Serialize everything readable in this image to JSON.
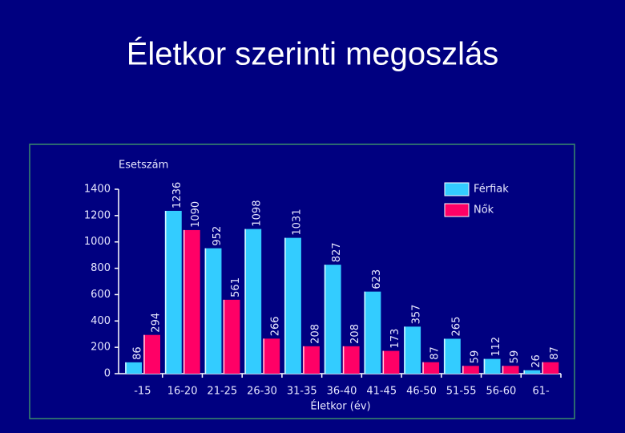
{
  "chart_data": {
    "type": "bar",
    "title": "Életkor szerinti megoszlás",
    "y_label": "Esetszám",
    "x_label": "Életkor (év)",
    "categories": [
      "-15",
      "16-20",
      "21-25",
      "26-30",
      "31-35",
      "36-40",
      "41-45",
      "46-50",
      "51-55",
      "56-60",
      "61-"
    ],
    "series": [
      {
        "name": "Férfiak",
        "color": "#33ccff",
        "values": [
          86,
          1236,
          952,
          1098,
          1031,
          827,
          623,
          357,
          265,
          112,
          26
        ]
      },
      {
        "name": "Nők",
        "color": "#ff0066",
        "values": [
          294,
          1090,
          561,
          266,
          208,
          208,
          173,
          87,
          59,
          59,
          87
        ]
      }
    ],
    "ylim": [
      0,
      1400
    ],
    "yticks": [
      0,
      200,
      400,
      600,
      800,
      1000,
      1200,
      1400
    ],
    "legend": "top-right"
  }
}
